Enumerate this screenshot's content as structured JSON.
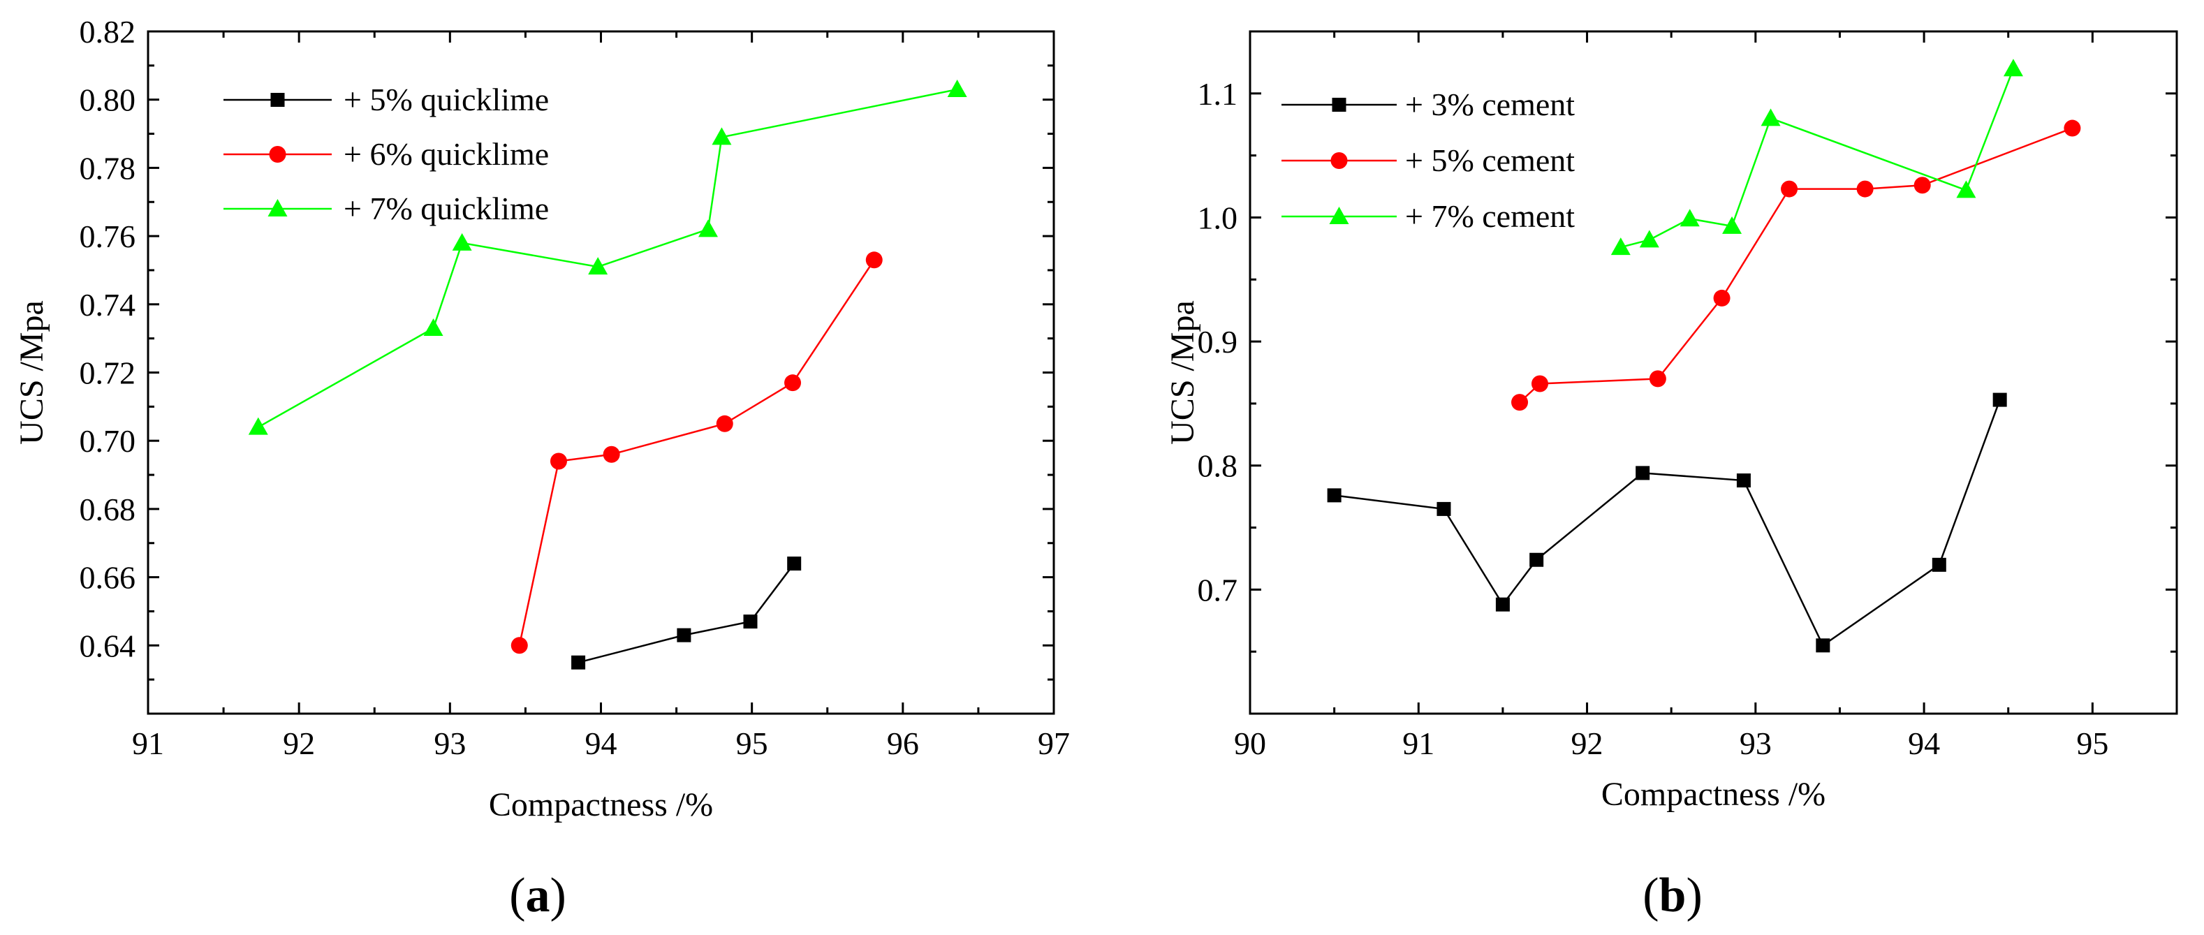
{
  "chart_data": [
    {
      "type": "line",
      "panel_label": "a",
      "xlabel": "Compactness /%",
      "ylabel": "UCS /Mpa",
      "xlim": [
        91,
        97
      ],
      "ylim": [
        0.62,
        0.82
      ],
      "x_ticks": [
        91,
        92,
        93,
        94,
        95,
        96,
        97
      ],
      "x_tick_labels": [
        "91",
        "92",
        "93",
        "94",
        "95",
        "96",
        "97"
      ],
      "y_ticks": [
        0.64,
        0.66,
        0.68,
        0.7,
        0.72,
        0.74,
        0.76,
        0.78,
        0.8,
        0.82
      ],
      "y_tick_labels": [
        "0.64",
        "0.66",
        "0.68",
        "0.70",
        "0.72",
        "0.74",
        "0.76",
        "0.78",
        "0.80",
        "0.82"
      ],
      "grid": false,
      "legend_position": "top-left",
      "series": [
        {
          "name": "+ 5% quicklime",
          "color": "#000000",
          "marker": "square",
          "x": [
            93.85,
            94.55,
            94.99,
            95.28
          ],
          "y": [
            0.635,
            0.643,
            0.647,
            0.664
          ]
        },
        {
          "name": "+ 6% quicklime",
          "color": "#ff0000",
          "marker": "circle",
          "x": [
            93.46,
            93.72,
            94.07,
            94.82,
            95.27,
            95.81
          ],
          "y": [
            0.64,
            0.694,
            0.696,
            0.705,
            0.717,
            0.753
          ]
        },
        {
          "name": "+ 7% quicklime",
          "color": "#00ff00",
          "marker": "triangle",
          "x": [
            91.73,
            92.89,
            93.08,
            93.98,
            94.71,
            94.8,
            96.36
          ],
          "y": [
            0.704,
            0.733,
            0.758,
            0.751,
            0.762,
            0.789,
            0.803
          ]
        }
      ]
    },
    {
      "type": "line",
      "panel_label": "b",
      "xlabel": "Compactness /%",
      "ylabel": "UCS /Mpa",
      "xlim": [
        90,
        95.5
      ],
      "ylim": [
        0.6,
        1.15
      ],
      "x_ticks": [
        90,
        91,
        92,
        93,
        94,
        95
      ],
      "x_tick_labels": [
        "90",
        "91",
        "92",
        "93",
        "94",
        "95"
      ],
      "y_ticks": [
        0.7,
        0.8,
        0.9,
        1.0,
        1.1
      ],
      "y_tick_labels": [
        "0.7",
        "0.8",
        "0.9",
        "1.0",
        "1.1"
      ],
      "grid": false,
      "legend_position": "top-left",
      "series": [
        {
          "name": "+ 3% cement",
          "color": "#000000",
          "marker": "square",
          "x": [
            90.5,
            91.15,
            91.5,
            91.7,
            92.33,
            92.93,
            93.4,
            94.09,
            94.45
          ],
          "y": [
            0.776,
            0.765,
            0.688,
            0.724,
            0.794,
            0.788,
            0.655,
            0.72,
            0.853
          ]
        },
        {
          "name": "+ 5% cement",
          "color": "#ff0000",
          "marker": "circle",
          "x": [
            91.6,
            91.72,
            92.42,
            92.8,
            93.2,
            93.65,
            93.99,
            94.88
          ],
          "y": [
            0.851,
            0.866,
            0.87,
            0.935,
            1.023,
            1.023,
            1.026,
            1.072
          ]
        },
        {
          "name": "+ 7% cement",
          "color": "#00ff00",
          "marker": "triangle",
          "x": [
            92.2,
            92.37,
            92.61,
            92.86,
            93.09,
            94.25,
            94.53
          ],
          "y": [
            0.976,
            0.982,
            0.999,
            0.993,
            1.08,
            1.022,
            1.12
          ]
        }
      ]
    }
  ]
}
